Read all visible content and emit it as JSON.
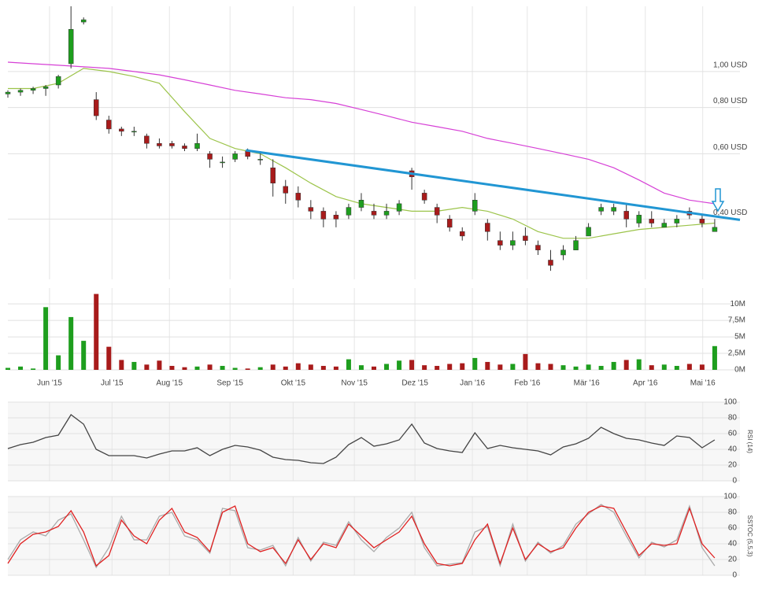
{
  "chart_data": [
    {
      "type": "candlestick",
      "log_y": true,
      "xlim": [
        0,
        116
      ],
      "ylim": [
        0.275,
        1.5
      ],
      "yticks": [
        {
          "value": 1.0,
          "label": "1,00 USD"
        },
        {
          "value": 0.8,
          "label": "0,80 USD"
        },
        {
          "value": 0.6,
          "label": "0,60 USD"
        },
        {
          "value": 0.4,
          "label": "0,40 USD"
        }
      ],
      "up_color": "#1e9e1e",
      "down_color": "#a81b1b",
      "x": [
        0,
        2,
        4,
        6,
        8,
        10,
        12,
        14,
        16,
        18,
        20,
        22,
        24,
        26,
        28,
        30,
        32,
        34,
        36,
        38,
        40,
        42,
        44,
        46,
        48,
        50,
        52,
        54,
        56,
        58,
        60,
        62,
        64,
        66,
        68,
        70,
        72,
        74,
        76,
        78,
        80,
        82,
        84,
        86,
        88,
        90,
        92,
        94,
        96,
        98,
        100,
        102,
        104,
        106,
        108,
        110,
        112
      ],
      "open": [
        0.87,
        0.88,
        0.89,
        0.9,
        0.92,
        1.05,
        1.36,
        0.84,
        0.74,
        0.7,
        0.69,
        0.67,
        0.64,
        0.64,
        0.63,
        0.62,
        0.6,
        0.57,
        0.58,
        0.61,
        0.58,
        0.55,
        0.49,
        0.47,
        0.43,
        0.42,
        0.41,
        0.41,
        0.43,
        0.42,
        0.41,
        0.42,
        0.54,
        0.47,
        0.43,
        0.4,
        0.37,
        0.42,
        0.39,
        0.35,
        0.34,
        0.36,
        0.34,
        0.31,
        0.32,
        0.33,
        0.36,
        0.42,
        0.42,
        0.42,
        0.39,
        0.4,
        0.38,
        0.39,
        0.42,
        0.4,
        0.37
      ],
      "high": [
        0.89,
        0.9,
        0.91,
        0.92,
        0.98,
        1.5,
        1.4,
        0.88,
        0.76,
        0.71,
        0.71,
        0.68,
        0.66,
        0.65,
        0.64,
        0.68,
        0.61,
        0.59,
        0.61,
        0.62,
        0.61,
        0.58,
        0.51,
        0.49,
        0.45,
        0.43,
        0.42,
        0.44,
        0.47,
        0.44,
        0.44,
        0.45,
        0.55,
        0.48,
        0.44,
        0.41,
        0.38,
        0.47,
        0.4,
        0.37,
        0.37,
        0.38,
        0.35,
        0.33,
        0.34,
        0.36,
        0.39,
        0.44,
        0.44,
        0.44,
        0.42,
        0.42,
        0.4,
        0.41,
        0.43,
        0.41,
        0.4
      ],
      "low": [
        0.85,
        0.86,
        0.87,
        0.86,
        0.9,
        1.02,
        1.34,
        0.74,
        0.68,
        0.67,
        0.67,
        0.62,
        0.62,
        0.62,
        0.61,
        0.61,
        0.55,
        0.55,
        0.57,
        0.58,
        0.56,
        0.46,
        0.44,
        0.43,
        0.4,
        0.38,
        0.38,
        0.4,
        0.42,
        0.4,
        0.4,
        0.41,
        0.48,
        0.44,
        0.39,
        0.37,
        0.35,
        0.41,
        0.35,
        0.33,
        0.33,
        0.34,
        0.32,
        0.29,
        0.31,
        0.33,
        0.36,
        0.41,
        0.41,
        0.38,
        0.38,
        0.38,
        0.38,
        0.38,
        0.4,
        0.38,
        0.37
      ],
      "close": [
        0.88,
        0.89,
        0.9,
        0.91,
        0.97,
        1.3,
        1.38,
        0.76,
        0.7,
        0.69,
        0.69,
        0.64,
        0.63,
        0.63,
        0.62,
        0.64,
        0.58,
        0.57,
        0.6,
        0.59,
        0.58,
        0.5,
        0.47,
        0.45,
        0.42,
        0.4,
        0.4,
        0.43,
        0.45,
        0.41,
        0.42,
        0.44,
        0.52,
        0.45,
        0.41,
        0.38,
        0.36,
        0.45,
        0.37,
        0.34,
        0.35,
        0.35,
        0.33,
        0.3,
        0.33,
        0.35,
        0.38,
        0.43,
        0.43,
        0.4,
        0.41,
        0.39,
        0.39,
        0.4,
        0.41,
        0.39,
        0.38
      ],
      "lines": [
        {
          "color": "#d640d6",
          "width": 1.2,
          "x": [
            0,
            4,
            8,
            12,
            16,
            20,
            24,
            28,
            32,
            36,
            40,
            44,
            48,
            52,
            56,
            60,
            64,
            68,
            72,
            76,
            80,
            84,
            88,
            92,
            96,
            100,
            104,
            108,
            112
          ],
          "values": [
            1.06,
            1.05,
            1.04,
            1.03,
            1.02,
            1.0,
            0.98,
            0.95,
            0.92,
            0.89,
            0.87,
            0.85,
            0.84,
            0.82,
            0.79,
            0.76,
            0.73,
            0.71,
            0.69,
            0.66,
            0.64,
            0.62,
            0.6,
            0.58,
            0.55,
            0.51,
            0.47,
            0.45,
            0.44
          ]
        },
        {
          "color": "#9cc44a",
          "width": 1.2,
          "x": [
            0,
            4,
            8,
            12,
            16,
            20,
            24,
            28,
            32,
            36,
            40,
            44,
            48,
            52,
            56,
            60,
            64,
            68,
            72,
            76,
            80,
            84,
            88,
            92,
            96,
            100,
            104,
            108,
            112
          ],
          "values": [
            0.9,
            0.9,
            0.93,
            1.02,
            1.0,
            0.97,
            0.93,
            0.78,
            0.66,
            0.62,
            0.6,
            0.55,
            0.5,
            0.46,
            0.44,
            0.43,
            0.42,
            0.42,
            0.43,
            0.42,
            0.4,
            0.37,
            0.355,
            0.355,
            0.365,
            0.375,
            0.38,
            0.385,
            0.39
          ]
        },
        {
          "color": "#2196d3",
          "width": 3,
          "x": [
            37.7,
            116
          ],
          "values": [
            0.613,
            0.398
          ]
        }
      ]
    },
    {
      "type": "bar",
      "xlim": [
        0,
        116
      ],
      "ylim": [
        0,
        12.4
      ],
      "up_color": "#1e9e1e",
      "down_color": "#a81b1b",
      "yticks": [
        {
          "value": 10,
          "label": "10M"
        },
        {
          "value": 7.5,
          "label": "7,5M"
        },
        {
          "value": 5,
          "label": "5M"
        },
        {
          "value": 2.5,
          "label": "2,5M"
        },
        {
          "value": 0,
          "label": "0M"
        }
      ],
      "xticks": [
        {
          "value": 6.6,
          "label": "Jun '15"
        },
        {
          "value": 16.5,
          "label": "Jul '15"
        },
        {
          "value": 25.6,
          "label": "Aug '15"
        },
        {
          "value": 35.2,
          "label": "Sep '15"
        },
        {
          "value": 45.2,
          "label": "Okt '15"
        },
        {
          "value": 54.9,
          "label": "Nov '15"
        },
        {
          "value": 64.5,
          "label": "Dez '15"
        },
        {
          "value": 73.6,
          "label": "Jan '16"
        },
        {
          "value": 82.3,
          "label": "Feb '16"
        },
        {
          "value": 91.7,
          "label": "Mär '16"
        },
        {
          "value": 101.0,
          "label": "Apr '16"
        },
        {
          "value": 110.1,
          "label": "Mai '16"
        }
      ],
      "x": [
        0,
        2,
        4,
        6,
        8,
        10,
        12,
        14,
        16,
        18,
        20,
        22,
        24,
        26,
        28,
        30,
        32,
        34,
        36,
        38,
        40,
        42,
        44,
        46,
        48,
        50,
        52,
        54,
        56,
        58,
        60,
        62,
        64,
        66,
        68,
        70,
        72,
        74,
        76,
        78,
        80,
        82,
        84,
        86,
        88,
        90,
        92,
        94,
        96,
        98,
        100,
        102,
        104,
        106,
        108,
        110,
        112
      ],
      "values": [
        0.3,
        0.5,
        0.2,
        9.5,
        2.2,
        8.0,
        4.4,
        11.5,
        3.5,
        1.5,
        1.2,
        0.8,
        1.4,
        0.6,
        0.4,
        0.5,
        0.8,
        0.6,
        0.3,
        0.2,
        0.4,
        0.8,
        0.5,
        1.0,
        0.8,
        0.6,
        0.5,
        1.6,
        0.7,
        0.5,
        0.9,
        1.4,
        1.5,
        0.7,
        0.6,
        0.9,
        1.0,
        1.8,
        1.2,
        0.8,
        0.9,
        2.4,
        1.0,
        0.9,
        0.7,
        0.5,
        0.8,
        0.6,
        1.2,
        1.5,
        1.6,
        0.7,
        0.8,
        0.6,
        0.9,
        0.8,
        3.6
      ]
    },
    {
      "type": "line",
      "ylabel": "RSI (14)",
      "xlim": [
        0,
        116
      ],
      "ylim": [
        0,
        100
      ],
      "yticks": [
        100,
        80,
        60,
        40,
        20,
        0
      ],
      "x": [
        0,
        2,
        4,
        6,
        8,
        10,
        12,
        14,
        16,
        18,
        20,
        22,
        24,
        26,
        28,
        30,
        32,
        34,
        36,
        38,
        40,
        42,
        44,
        46,
        48,
        50,
        52,
        54,
        56,
        58,
        60,
        62,
        64,
        66,
        68,
        70,
        72,
        74,
        76,
        78,
        80,
        82,
        84,
        86,
        88,
        90,
        92,
        94,
        96,
        98,
        100,
        102,
        104,
        106,
        108,
        110,
        112
      ],
      "series": [
        {
          "color": "#444444",
          "values": [
            41,
            46,
            49,
            55,
            58,
            84,
            72,
            40,
            32,
            32,
            32,
            29,
            34,
            38,
            38,
            42,
            32,
            40,
            45,
            43,
            39,
            30,
            27,
            26,
            23,
            22,
            30,
            46,
            55,
            44,
            47,
            52,
            72,
            48,
            41,
            38,
            36,
            61,
            41,
            45,
            42,
            40,
            38,
            33,
            43,
            47,
            54,
            68,
            60,
            54,
            52,
            48,
            45,
            57,
            55,
            42,
            52
          ]
        }
      ]
    },
    {
      "type": "line",
      "ylabel": "SSTOC (5,5,3)",
      "xlim": [
        0,
        116
      ],
      "ylim": [
        0,
        100
      ],
      "yticks": [
        100,
        80,
        60,
        40,
        20,
        0
      ],
      "x": [
        0,
        2,
        4,
        6,
        8,
        10,
        12,
        14,
        16,
        18,
        20,
        22,
        24,
        26,
        28,
        30,
        32,
        34,
        36,
        38,
        40,
        42,
        44,
        46,
        48,
        50,
        52,
        54,
        56,
        58,
        60,
        62,
        64,
        66,
        68,
        70,
        72,
        74,
        76,
        78,
        80,
        82,
        84,
        86,
        88,
        90,
        92,
        94,
        96,
        98,
        100,
        102,
        104,
        106,
        108,
        110,
        112
      ],
      "series": [
        {
          "color": "#aaaaaa",
          "values": [
            20,
            45,
            55,
            50,
            70,
            78,
            45,
            10,
            35,
            75,
            45,
            45,
            75,
            80,
            50,
            45,
            28,
            85,
            82,
            35,
            32,
            38,
            12,
            48,
            18,
            42,
            38,
            68,
            45,
            30,
            48,
            60,
            80,
            35,
            12,
            14,
            16,
            55,
            62,
            12,
            65,
            18,
            42,
            28,
            38,
            65,
            78,
            90,
            80,
            50,
            22,
            42,
            36,
            45,
            88,
            35,
            12
          ]
        },
        {
          "color": "#e02020",
          "values": [
            15,
            40,
            52,
            55,
            62,
            82,
            55,
            12,
            25,
            70,
            50,
            40,
            70,
            85,
            55,
            48,
            30,
            80,
            88,
            40,
            30,
            35,
            15,
            45,
            20,
            40,
            35,
            65,
            50,
            35,
            45,
            55,
            75,
            40,
            15,
            12,
            15,
            45,
            65,
            15,
            60,
            20,
            40,
            30,
            35,
            60,
            80,
            88,
            85,
            55,
            25,
            40,
            38,
            40,
            85,
            40,
            22
          ]
        }
      ]
    }
  ]
}
